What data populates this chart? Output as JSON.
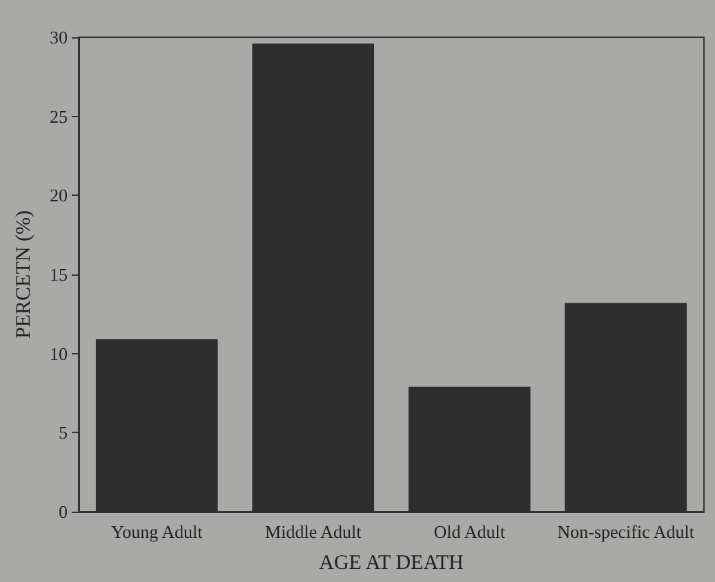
{
  "chart_data": {
    "type": "bar",
    "xlabel": "AGE AT DEATH",
    "ylabel": "PERCETN (%)",
    "categories": [
      "Young Adult",
      "Middle Adult",
      "Old Adult",
      "Non-specific Adult"
    ],
    "values": [
      10.9,
      29.6,
      7.9,
      13.2
    ],
    "color": "#2e2e2e",
    "ylim": [
      0,
      30
    ],
    "yticks": [
      0,
      5,
      10,
      15,
      20,
      25,
      30
    ],
    "grid": false
  }
}
